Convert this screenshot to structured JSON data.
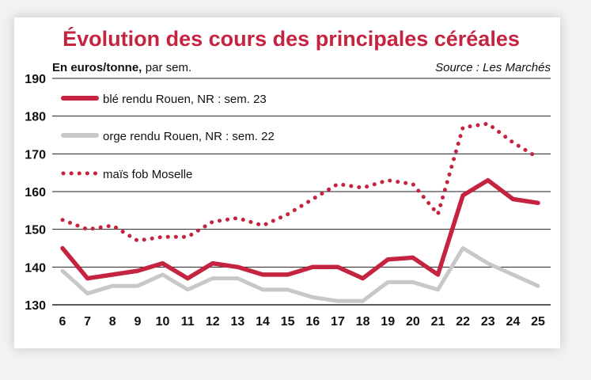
{
  "chart_data": {
    "type": "line",
    "title": "Évolution des cours des principales céréales",
    "ylabel_bold": "En euros/tonne,",
    "ylabel_rest": " par sem.",
    "source": "Source : Les Marchés",
    "x": [
      6,
      7,
      8,
      9,
      10,
      11,
      12,
      13,
      14,
      15,
      16,
      17,
      18,
      19,
      20,
      21,
      22,
      23,
      24,
      25
    ],
    "ylim": [
      130,
      190
    ],
    "yticks": [
      130,
      140,
      150,
      160,
      170,
      180,
      190
    ],
    "grid": true,
    "legend_position": "top-left",
    "series": [
      {
        "name": "blé rendu Rouen, NR : sem. 23",
        "style": "solid",
        "color": "#c4243f",
        "values": [
          145,
          137,
          138,
          139,
          141,
          137,
          141,
          140,
          138,
          138,
          140,
          140,
          137,
          142,
          142.5,
          138,
          159,
          163,
          158,
          157
        ]
      },
      {
        "name": "orge rendu Rouen, NR : sem. 22",
        "style": "solid",
        "color": "#c8c8c8",
        "values": [
          139,
          133,
          135,
          135,
          138,
          134,
          137,
          137,
          134,
          134,
          132,
          131,
          131,
          136,
          136,
          134,
          145,
          141,
          138,
          135
        ]
      },
      {
        "name": "maïs fob Moselle",
        "style": "dotted",
        "color": "#c4243f",
        "values": [
          152.5,
          150,
          151,
          147,
          148,
          148,
          152,
          153,
          151,
          154,
          158,
          162,
          161,
          163,
          162,
          154,
          177,
          178,
          173,
          169
        ]
      }
    ]
  }
}
